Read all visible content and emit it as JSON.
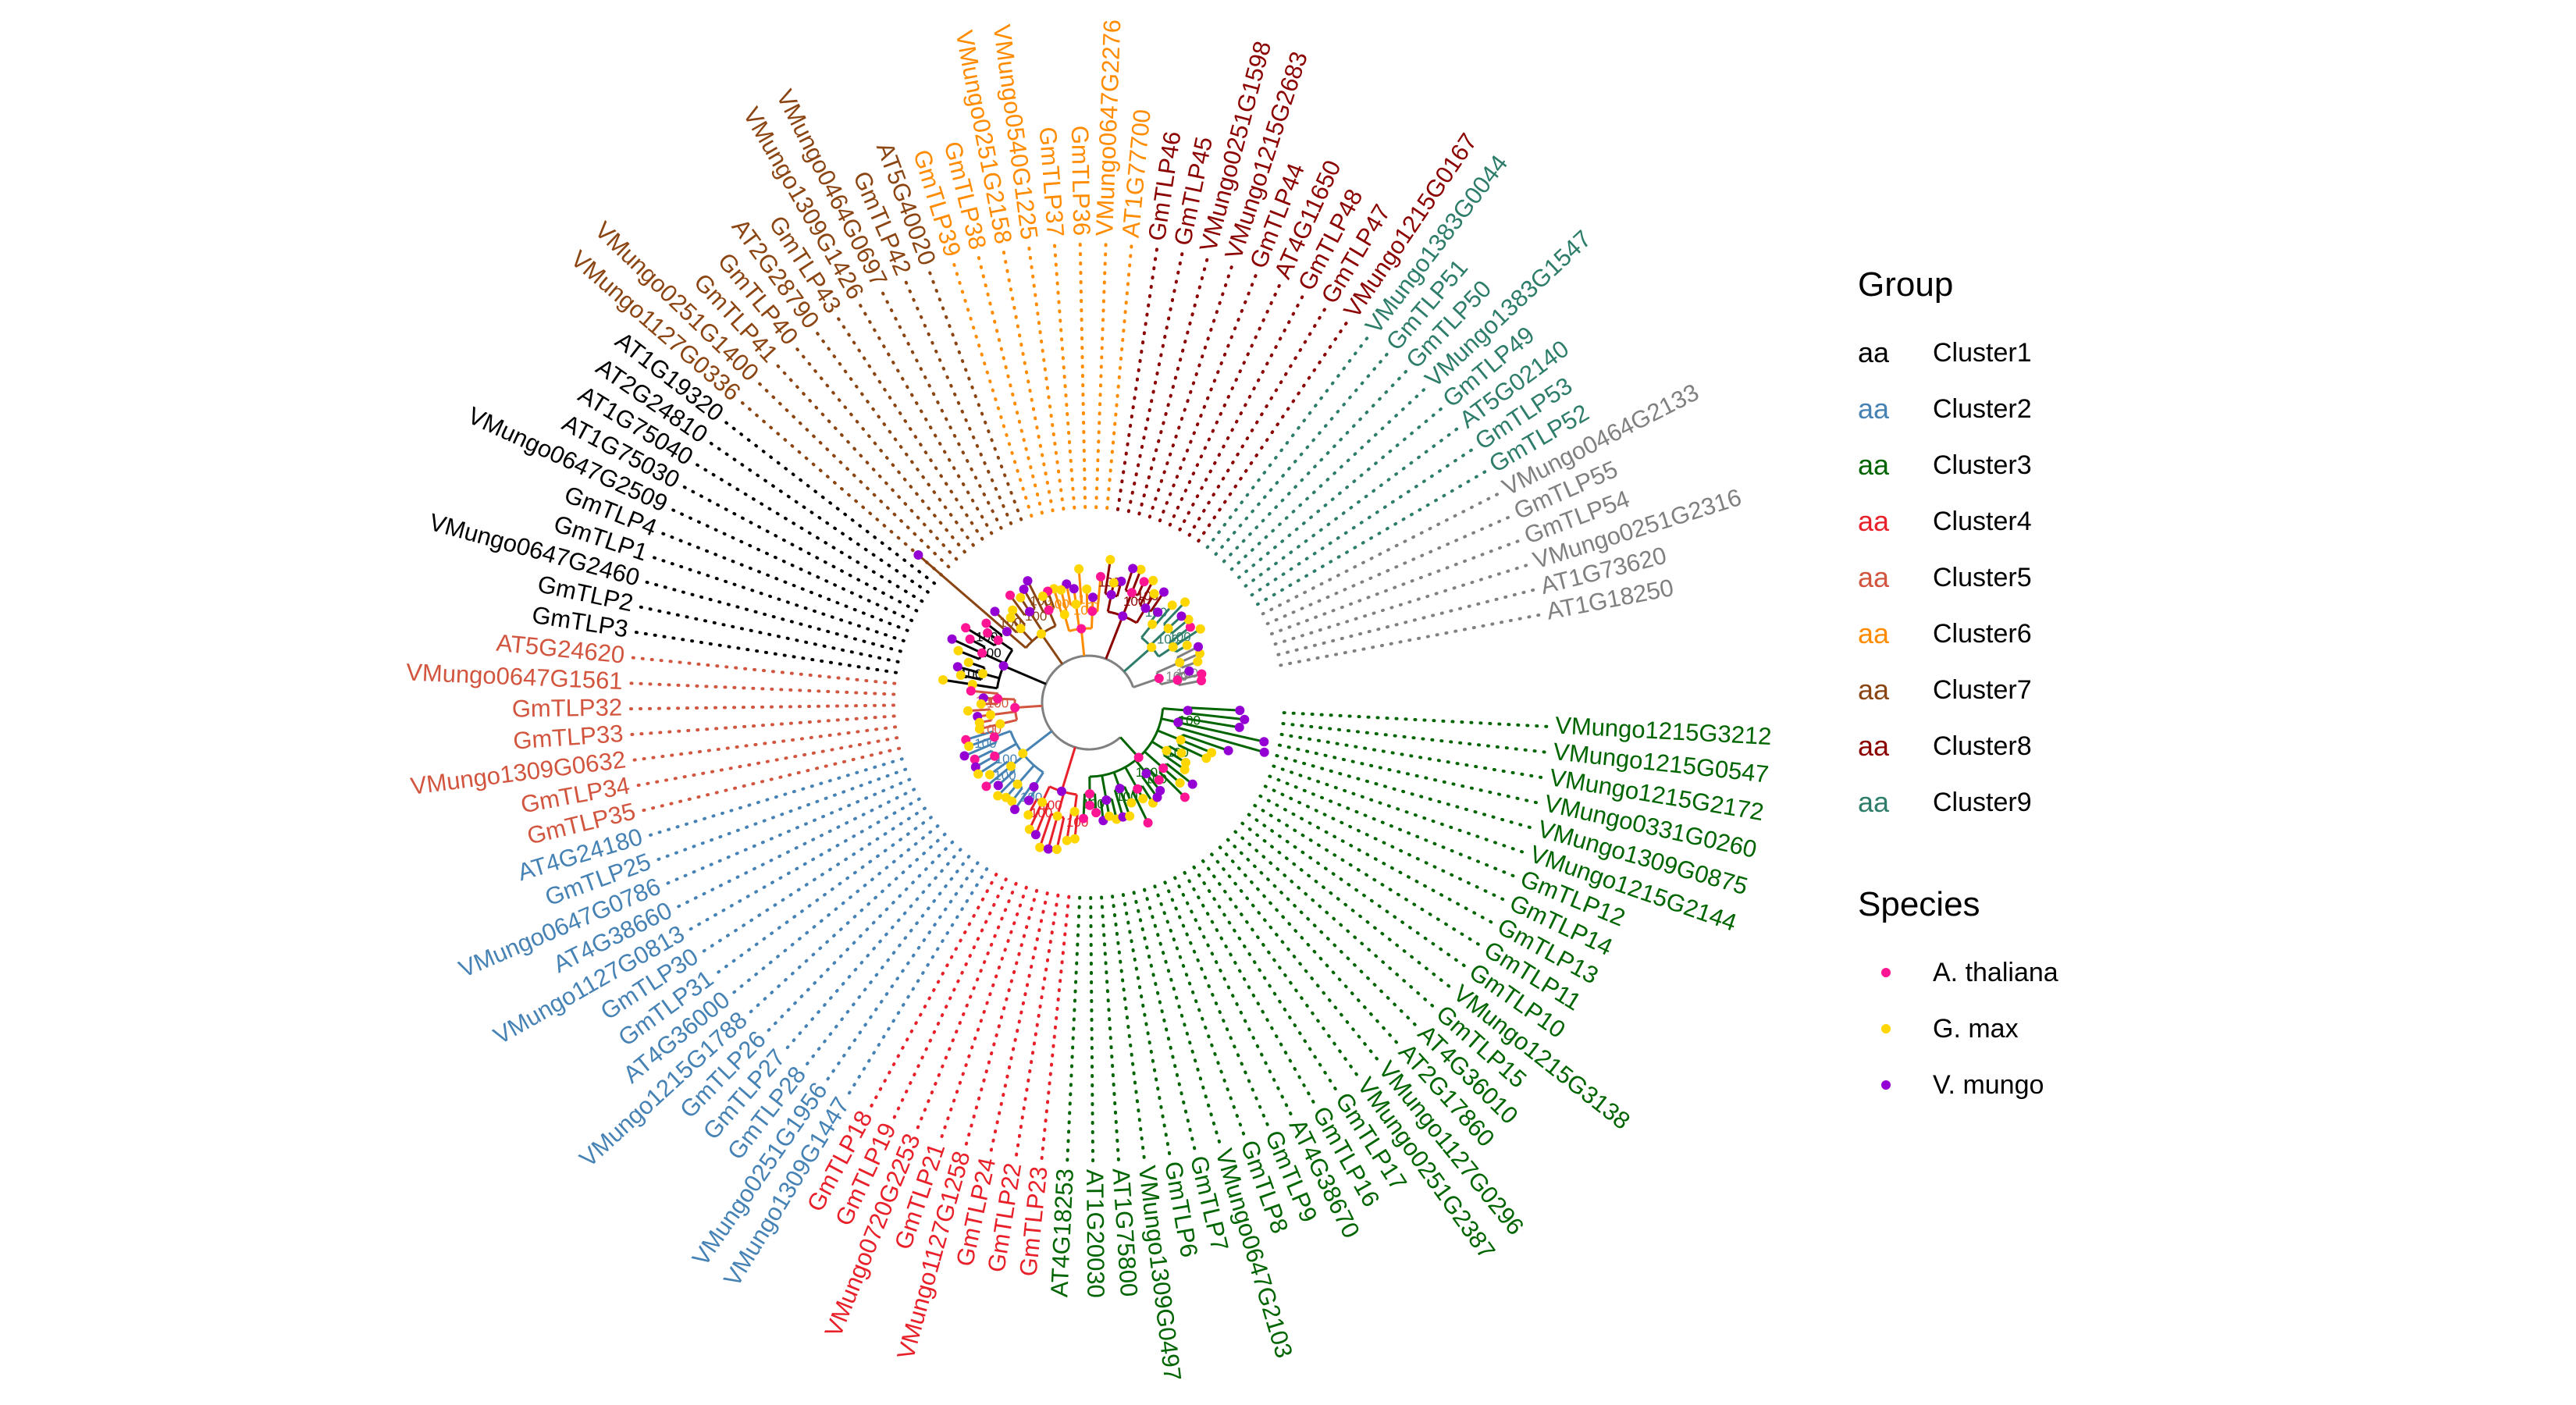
{
  "colors": {
    "cluster1": "#000000",
    "cluster2": "#4682B4",
    "cluster3": "#006400",
    "cluster4": "#E8202A",
    "cluster5": "#D2553F",
    "cluster6": "#FF8C00",
    "cluster7": "#8B4513",
    "cluster8": "#8B0000",
    "cluster9": "#2E7D6B",
    "outgroup": "#808080",
    "thaliana": "#FF1493",
    "max": "#FFD700",
    "mungo": "#9400D3"
  },
  "legend": {
    "group_title": "Group",
    "key_glyph": "aa",
    "groups": [
      {
        "label": "Cluster1",
        "color_key": "cluster1"
      },
      {
        "label": "Cluster2",
        "color_key": "cluster2"
      },
      {
        "label": "Cluster3",
        "color_key": "cluster3"
      },
      {
        "label": "Cluster4",
        "color_key": "cluster4"
      },
      {
        "label": "Cluster5",
        "color_key": "cluster5"
      },
      {
        "label": "Cluster6",
        "color_key": "cluster6"
      },
      {
        "label": "Cluster7",
        "color_key": "cluster7"
      },
      {
        "label": "Cluster8",
        "color_key": "cluster8"
      },
      {
        "label": "Cluster9",
        "color_key": "cluster9"
      }
    ],
    "species_title": "Species",
    "species": [
      {
        "label": "A. thaliana",
        "color_key": "thaliana"
      },
      {
        "label": "G. max",
        "color_key": "max"
      },
      {
        "label": "V. mungo",
        "color_key": "mungo"
      }
    ]
  },
  "tree": {
    "bootstrap_label": "100",
    "tips": [
      {
        "label": "AT1G18250",
        "cluster": "outgroup",
        "species": "thaliana"
      },
      {
        "label": "AT1G73620",
        "cluster": "outgroup",
        "species": "thaliana"
      },
      {
        "label": "VMungo0251G2316",
        "cluster": "outgroup",
        "species": "mungo"
      },
      {
        "label": "GmTLP54",
        "cluster": "outgroup",
        "species": "max"
      },
      {
        "label": "GmTLP55",
        "cluster": "outgroup",
        "species": "max"
      },
      {
        "label": "VMungo0464G2133",
        "cluster": "outgroup",
        "species": "mungo"
      },
      {
        "label": "GmTLP52",
        "cluster": "cluster9",
        "species": "max"
      },
      {
        "label": "GmTLP53",
        "cluster": "cluster9",
        "species": "max"
      },
      {
        "label": "AT5G02140",
        "cluster": "cluster9",
        "species": "thaliana"
      },
      {
        "label": "GmTLP49",
        "cluster": "cluster9",
        "species": "max"
      },
      {
        "label": "VMungo1383G1547",
        "cluster": "cluster9",
        "species": "mungo"
      },
      {
        "label": "GmTLP50",
        "cluster": "cluster9",
        "species": "max"
      },
      {
        "label": "GmTLP51",
        "cluster": "cluster9",
        "species": "max"
      },
      {
        "label": "VMungo1383G0044",
        "cluster": "cluster9",
        "species": "mungo"
      },
      {
        "label": "VMungo1215G0167",
        "cluster": "cluster8",
        "species": "mungo"
      },
      {
        "label": "GmTLP47",
        "cluster": "cluster8",
        "species": "max"
      },
      {
        "label": "GmTLP48",
        "cluster": "cluster8",
        "species": "max"
      },
      {
        "label": "AT4G11650",
        "cluster": "cluster8",
        "species": "thaliana"
      },
      {
        "label": "GmTLP44",
        "cluster": "cluster8",
        "species": "max"
      },
      {
        "label": "VMungo1215G2683",
        "cluster": "cluster8",
        "species": "mungo"
      },
      {
        "label": "VMungo0251G1598",
        "cluster": "cluster8",
        "species": "mungo"
      },
      {
        "label": "GmTLP45",
        "cluster": "cluster8",
        "species": "max"
      },
      {
        "label": "GmTLP46",
        "cluster": "cluster8",
        "species": "max"
      },
      {
        "label": "AT1G77700",
        "cluster": "cluster6",
        "species": "thaliana"
      },
      {
        "label": "VMungo0647G2276",
        "cluster": "cluster6",
        "species": "mungo"
      },
      {
        "label": "GmTLP36",
        "cluster": "cluster6",
        "species": "max"
      },
      {
        "label": "GmTLP37",
        "cluster": "cluster6",
        "species": "max"
      },
      {
        "label": "VMungo0540G1225",
        "cluster": "cluster6",
        "species": "mungo"
      },
      {
        "label": "VMungo0251G2158",
        "cluster": "cluster6",
        "species": "mungo"
      },
      {
        "label": "GmTLP38",
        "cluster": "cluster6",
        "species": "max"
      },
      {
        "label": "GmTLP39",
        "cluster": "cluster6",
        "species": "max"
      },
      {
        "label": "AT5G40020",
        "cluster": "cluster7",
        "species": "thaliana"
      },
      {
        "label": "GmTLP42",
        "cluster": "cluster7",
        "species": "max"
      },
      {
        "label": "VMungo0464G0697",
        "cluster": "cluster7",
        "species": "mungo"
      },
      {
        "label": "VMungo1309G1426",
        "cluster": "cluster7",
        "species": "mungo"
      },
      {
        "label": "GmTLP43",
        "cluster": "cluster7",
        "species": "max"
      },
      {
        "label": "AT2G28790",
        "cluster": "cluster7",
        "species": "thaliana"
      },
      {
        "label": "GmTLP40",
        "cluster": "cluster7",
        "species": "max"
      },
      {
        "label": "GmTLP41",
        "cluster": "cluster7",
        "species": "max"
      },
      {
        "label": "VMungo0251G1400",
        "cluster": "cluster7",
        "species": "mungo"
      },
      {
        "label": "VMungo1127G0336",
        "cluster": "cluster7",
        "species": "mungo"
      },
      {
        "label": "AT1G19320",
        "cluster": "cluster1",
        "species": "thaliana"
      },
      {
        "label": "AT2G24810",
        "cluster": "cluster1",
        "species": "thaliana"
      },
      {
        "label": "AT1G75040",
        "cluster": "cluster1",
        "species": "thaliana"
      },
      {
        "label": "AT1G75030",
        "cluster": "cluster1",
        "species": "thaliana"
      },
      {
        "label": "VMungo0647G2509",
        "cluster": "cluster1",
        "species": "mungo"
      },
      {
        "label": "GmTLP4",
        "cluster": "cluster1",
        "species": "max"
      },
      {
        "label": "GmTLP1",
        "cluster": "cluster1",
        "species": "max"
      },
      {
        "label": "VMungo0647G2460",
        "cluster": "cluster1",
        "species": "mungo"
      },
      {
        "label": "GmTLP2",
        "cluster": "cluster1",
        "species": "max"
      },
      {
        "label": "GmTLP3",
        "cluster": "cluster1",
        "species": "max"
      },
      {
        "label": "AT5G24620",
        "cluster": "cluster5",
        "species": "thaliana"
      },
      {
        "label": "VMungo0647G1561",
        "cluster": "cluster5",
        "species": "mungo"
      },
      {
        "label": "GmTLP32",
        "cluster": "cluster5",
        "species": "max"
      },
      {
        "label": "GmTLP33",
        "cluster": "cluster5",
        "species": "max"
      },
      {
        "label": "VMungo1309G0632",
        "cluster": "cluster5",
        "species": "mungo"
      },
      {
        "label": "GmTLP34",
        "cluster": "cluster5",
        "species": "max"
      },
      {
        "label": "GmTLP35",
        "cluster": "cluster5",
        "species": "max"
      },
      {
        "label": "AT4G24180",
        "cluster": "cluster2",
        "species": "thaliana"
      },
      {
        "label": "GmTLP25",
        "cluster": "cluster2",
        "species": "max"
      },
      {
        "label": "VMungo0647G0786",
        "cluster": "cluster2",
        "species": "mungo"
      },
      {
        "label": "AT4G38660",
        "cluster": "cluster2",
        "species": "thaliana"
      },
      {
        "label": "VMungo1127G0813",
        "cluster": "cluster2",
        "species": "mungo"
      },
      {
        "label": "GmTLP30",
        "cluster": "cluster2",
        "species": "max"
      },
      {
        "label": "GmTLP31",
        "cluster": "cluster2",
        "species": "max"
      },
      {
        "label": "AT4G36000",
        "cluster": "cluster2",
        "species": "thaliana"
      },
      {
        "label": "VMungo1215G1788",
        "cluster": "cluster2",
        "species": "mungo"
      },
      {
        "label": "GmTLP26",
        "cluster": "cluster2",
        "species": "max"
      },
      {
        "label": "GmTLP27",
        "cluster": "cluster2",
        "species": "max"
      },
      {
        "label": "GmTLP28",
        "cluster": "cluster2",
        "species": "max"
      },
      {
        "label": "VMungo0251G1956",
        "cluster": "cluster2",
        "species": "mungo"
      },
      {
        "label": "VMungo1309G1447",
        "cluster": "cluster2",
        "species": "mungo"
      },
      {
        "label": "GmTLP18",
        "cluster": "cluster4",
        "species": "max"
      },
      {
        "label": "GmTLP19",
        "cluster": "cluster4",
        "species": "max"
      },
      {
        "label": "VMungo0720G2253",
        "cluster": "cluster4",
        "species": "mungo"
      },
      {
        "label": "GmTLP21",
        "cluster": "cluster4",
        "species": "max"
      },
      {
        "label": "VMungo1127G1258",
        "cluster": "cluster4",
        "species": "mungo"
      },
      {
        "label": "GmTLP24",
        "cluster": "cluster4",
        "species": "max"
      },
      {
        "label": "GmTLP22",
        "cluster": "cluster4",
        "species": "max"
      },
      {
        "label": "GmTLP23",
        "cluster": "cluster4",
        "species": "max"
      },
      {
        "label": "AT4G18253",
        "cluster": "cluster3",
        "species": "thaliana"
      },
      {
        "label": "AT1G20030",
        "cluster": "cluster3",
        "species": "thaliana"
      },
      {
        "label": "AT1G75800",
        "cluster": "cluster3",
        "species": "thaliana"
      },
      {
        "label": "VMungo1309G0497",
        "cluster": "cluster3",
        "species": "mungo"
      },
      {
        "label": "GmTLP6",
        "cluster": "cluster3",
        "species": "max"
      },
      {
        "label": "GmTLP7",
        "cluster": "cluster3",
        "species": "max"
      },
      {
        "label": "VMungo0647G2103",
        "cluster": "cluster3",
        "species": "mungo"
      },
      {
        "label": "GmTLP8",
        "cluster": "cluster3",
        "species": "max"
      },
      {
        "label": "GmTLP9",
        "cluster": "cluster3",
        "species": "max"
      },
      {
        "label": "AT4G38670",
        "cluster": "cluster3",
        "species": "thaliana"
      },
      {
        "label": "GmTLP16",
        "cluster": "cluster3",
        "species": "max"
      },
      {
        "label": "GmTLP17",
        "cluster": "cluster3",
        "species": "max"
      },
      {
        "label": "VMungo0251G2387",
        "cluster": "cluster3",
        "species": "mungo"
      },
      {
        "label": "VMungo1127G0296",
        "cluster": "cluster3",
        "species": "mungo"
      },
      {
        "label": "AT2G17860",
        "cluster": "cluster3",
        "species": "thaliana"
      },
      {
        "label": "AT4G36010",
        "cluster": "cluster3",
        "species": "thaliana"
      },
      {
        "label": "GmTLP15",
        "cluster": "cluster3",
        "species": "max"
      },
      {
        "label": "VMungo1215G3138",
        "cluster": "cluster3",
        "species": "mungo"
      },
      {
        "label": "GmTLP10",
        "cluster": "cluster3",
        "species": "max"
      },
      {
        "label": "GmTLP11",
        "cluster": "cluster3",
        "species": "max"
      },
      {
        "label": "GmTLP13",
        "cluster": "cluster3",
        "species": "max"
      },
      {
        "label": "GmTLP14",
        "cluster": "cluster3",
        "species": "max"
      },
      {
        "label": "GmTLP12",
        "cluster": "cluster3",
        "species": "max"
      },
      {
        "label": "VMungo1215G2144",
        "cluster": "cluster3",
        "species": "mungo"
      },
      {
        "label": "VMungo1309G0875",
        "cluster": "cluster3",
        "species": "mungo"
      },
      {
        "label": "VMungo0331G0260",
        "cluster": "cluster3",
        "species": "mungo"
      },
      {
        "label": "VMungo1215G2172",
        "cluster": "cluster3",
        "species": "mungo"
      },
      {
        "label": "VMungo1215G0547",
        "cluster": "cluster3",
        "species": "mungo"
      },
      {
        "label": "VMungo1215G3212",
        "cluster": "cluster3",
        "species": "mungo"
      }
    ]
  }
}
